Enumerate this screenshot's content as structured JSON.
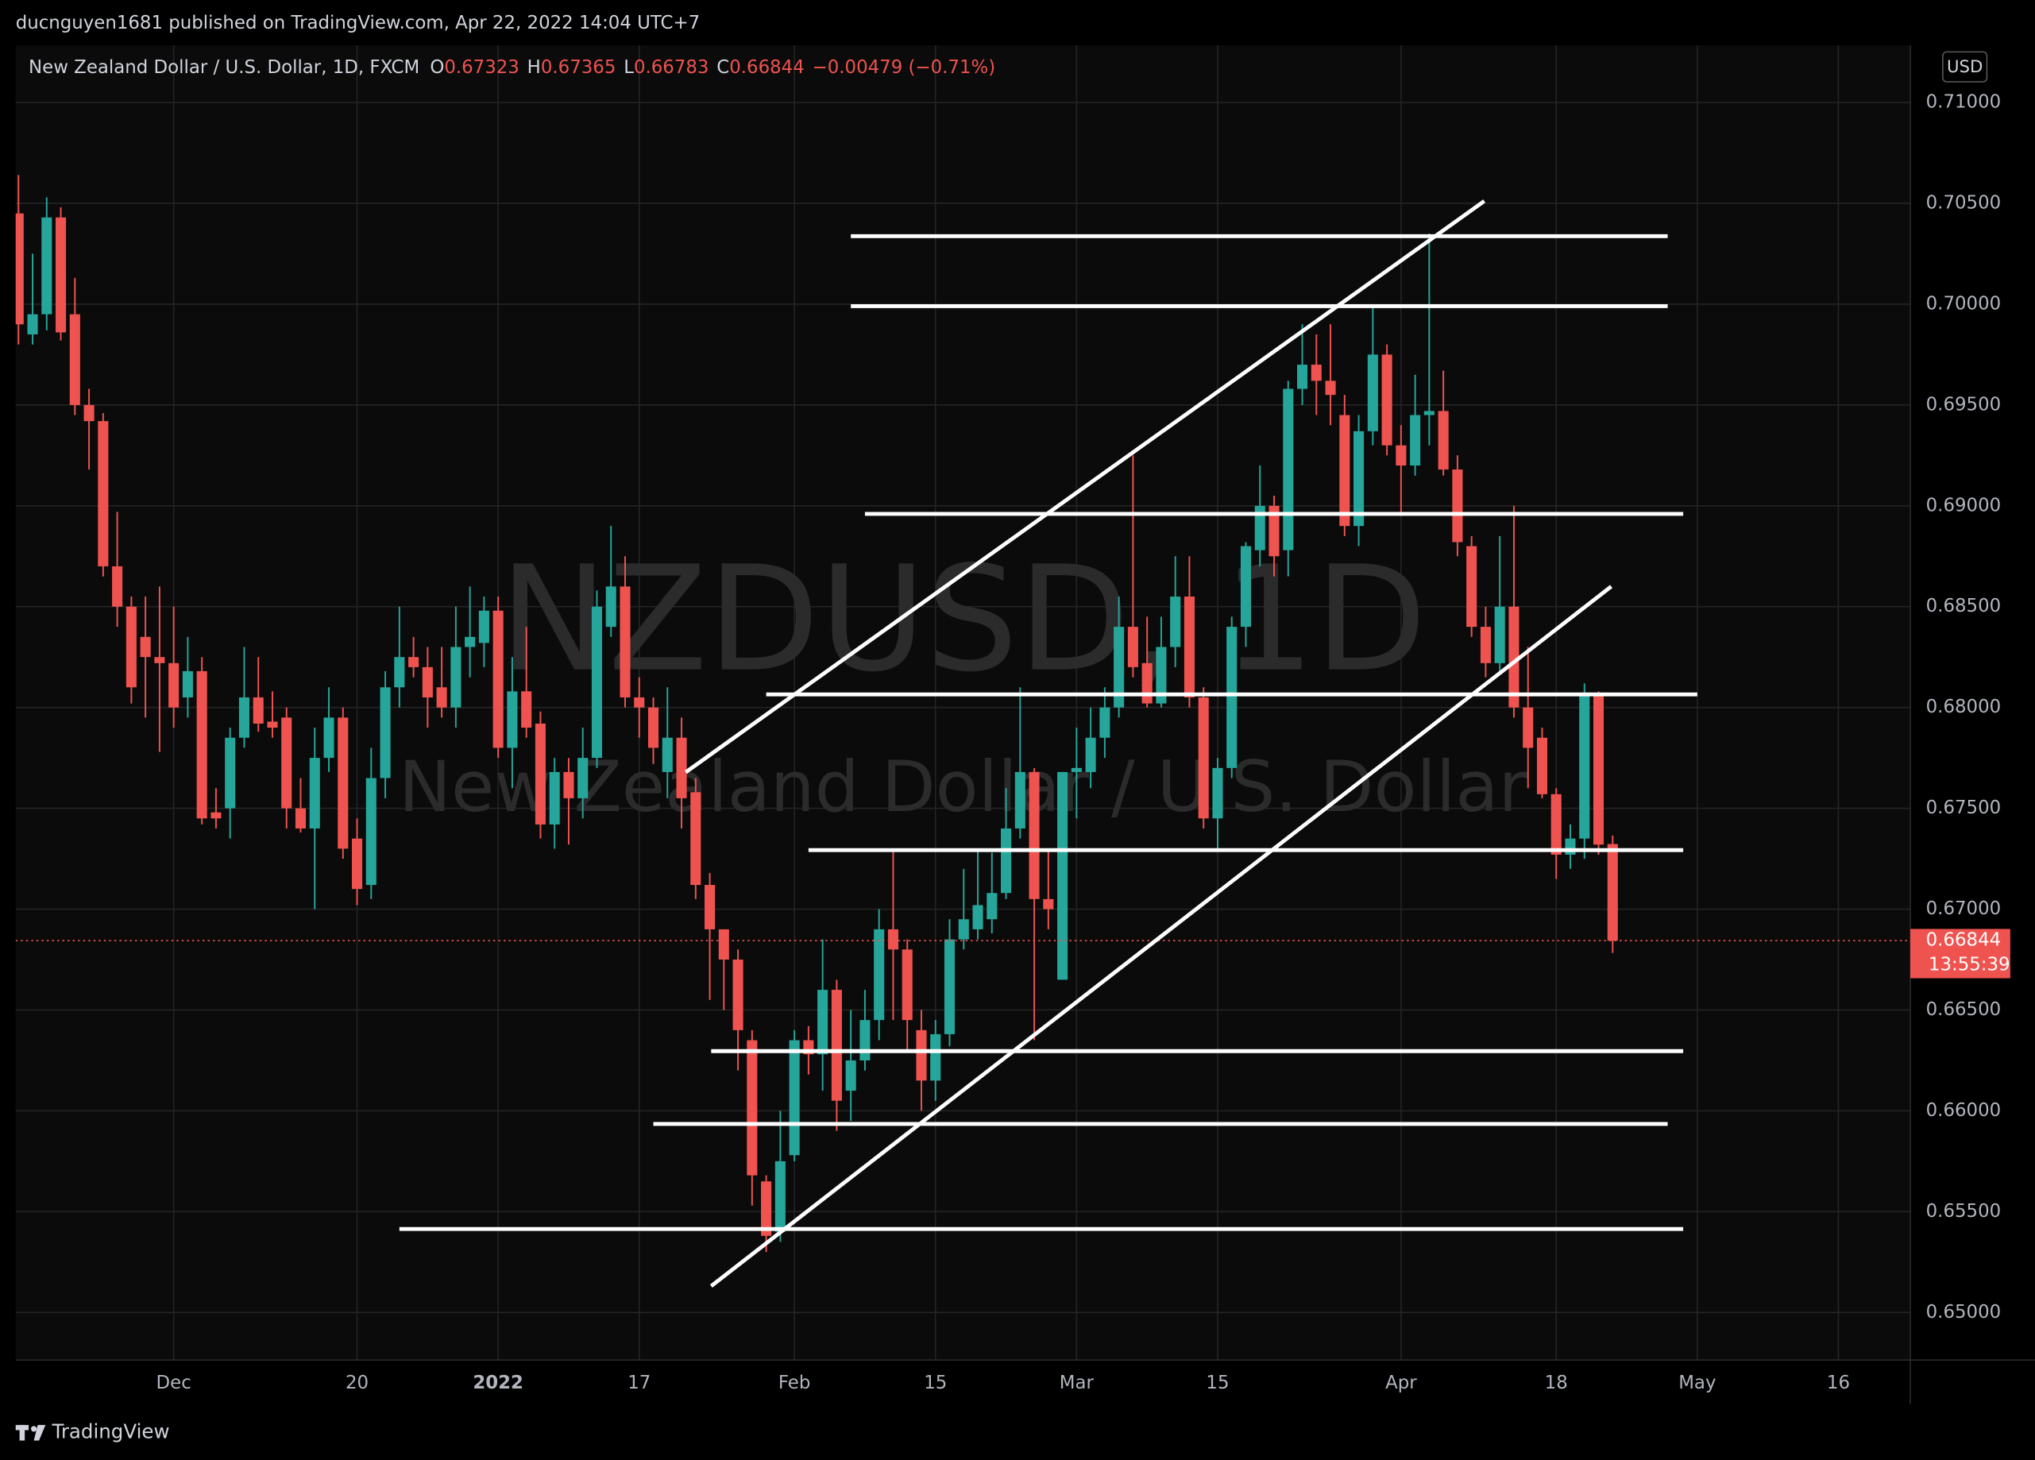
{
  "header": {
    "author": "ducnguyen1681 published on TradingView.com, Apr 22, 2022 14:04 UTC+7",
    "brand": "TradingView"
  },
  "chart_data": {
    "type": "candlestick",
    "symbol": "New Zealand Dollar / U.S. Dollar, 1D, FXCM",
    "ohlc": [
      {
        "label": "O",
        "value": 0.67323
      },
      {
        "label": "H",
        "value": 0.67365
      },
      {
        "label": "L",
        "value": 0.66783
      },
      {
        "label": "C",
        "value": 0.66844
      }
    ],
    "change": "−0.00479 (−0.71%)",
    "watermark": [
      "NZDUSD, 1D",
      "New Zealand Dollar / U.S. Dollar"
    ],
    "currency": "USD",
    "countdown": "13:55:39",
    "up_color": "#26a69a",
    "down_color": "#ef5350",
    "open": [
      0.7045,
      0.6985,
      0.6995,
      0.7043,
      0.6995,
      0.695,
      0.6942,
      0.687,
      0.685,
      0.6835,
      0.6825,
      0.6822,
      0.6805,
      0.6818,
      0.6748,
      0.675,
      0.6785,
      0.6805,
      0.6793,
      0.6795,
      0.675,
      0.674,
      0.6775,
      0.6795,
      0.6735,
      0.6712,
      0.6765,
      0.681,
      0.6825,
      0.682,
      0.681,
      0.68,
      0.683,
      0.6832,
      0.6848,
      0.678,
      0.6808,
      0.6792,
      0.6742,
      0.6768,
      0.6755,
      0.6775,
      0.684,
      0.686,
      0.6805,
      0.68,
      0.6768,
      0.6785,
      0.6758,
      0.6712,
      0.669,
      0.6675,
      0.6635,
      0.6565,
      0.654,
      0.6578,
      0.6635,
      0.6628,
      0.666,
      0.661,
      0.6625,
      0.6645,
      0.669,
      0.668,
      0.664,
      0.6615,
      0.6638,
      0.6685,
      0.669,
      0.6695,
      0.6708,
      0.674,
      0.6768,
      0.6705,
      0.6665,
      0.6768,
      0.6768,
      0.6785,
      0.68,
      0.684,
      0.6822,
      0.6802,
      0.683,
      0.6855,
      0.6805,
      0.6745,
      0.677,
      0.684,
      0.6878,
      0.69,
      0.6878,
      0.6958,
      0.697,
      0.6962,
      0.6945,
      0.689,
      0.6937,
      0.6975,
      0.693,
      0.692,
      0.6945,
      0.6947,
      0.6918,
      0.688,
      0.684,
      0.6822,
      0.685,
      0.68,
      0.6785,
      0.6757,
      0.6727,
      0.6735,
      0.6807,
      0.67323
    ],
    "high": [
      0.7064,
      0.7025,
      0.7053,
      0.7048,
      0.7013,
      0.6958,
      0.6946,
      0.6897,
      0.6855,
      0.6855,
      0.686,
      0.685,
      0.6835,
      0.6825,
      0.676,
      0.679,
      0.683,
      0.6825,
      0.6808,
      0.68,
      0.6765,
      0.679,
      0.681,
      0.68,
      0.6745,
      0.678,
      0.6818,
      0.685,
      0.6835,
      0.683,
      0.683,
      0.685,
      0.686,
      0.6855,
      0.6855,
      0.6825,
      0.684,
      0.6798,
      0.6775,
      0.6775,
      0.679,
      0.6858,
      0.689,
      0.6875,
      0.6815,
      0.6805,
      0.681,
      0.6795,
      0.6765,
      0.6718,
      0.669,
      0.668,
      0.664,
      0.6568,
      0.66,
      0.664,
      0.6642,
      0.6685,
      0.6665,
      0.665,
      0.666,
      0.67,
      0.673,
      0.6685,
      0.665,
      0.6645,
      0.6695,
      0.672,
      0.673,
      0.6728,
      0.676,
      0.681,
      0.677,
      0.673,
      0.6768,
      0.679,
      0.68,
      0.681,
      0.6855,
      0.6925,
      0.6845,
      0.6845,
      0.6875,
      0.6875,
      0.681,
      0.6775,
      0.6845,
      0.6882,
      0.692,
      0.6905,
      0.6962,
      0.699,
      0.6985,
      0.699,
      0.6955,
      0.6945,
      0.7,
      0.698,
      0.694,
      0.6965,
      0.7035,
      0.6967,
      0.6925,
      0.6885,
      0.685,
      0.6885,
      0.69,
      0.683,
      0.679,
      0.676,
      0.6742,
      0.6812,
      0.6808,
      0.67365
    ],
    "low": [
      0.698,
      0.698,
      0.6987,
      0.6982,
      0.6945,
      0.6918,
      0.6865,
      0.684,
      0.6802,
      0.6795,
      0.6778,
      0.679,
      0.6795,
      0.6742,
      0.674,
      0.6735,
      0.678,
      0.6788,
      0.6785,
      0.674,
      0.6738,
      0.67,
      0.6768,
      0.6725,
      0.6702,
      0.6705,
      0.6755,
      0.68,
      0.6815,
      0.679,
      0.6795,
      0.679,
      0.6815,
      0.682,
      0.6775,
      0.676,
      0.6785,
      0.6735,
      0.673,
      0.6732,
      0.6745,
      0.677,
      0.6835,
      0.68,
      0.6785,
      0.6772,
      0.6755,
      0.674,
      0.6705,
      0.6655,
      0.665,
      0.662,
      0.6553,
      0.653,
      0.6535,
      0.6575,
      0.6618,
      0.661,
      0.659,
      0.6595,
      0.662,
      0.6635,
      0.6645,
      0.663,
      0.66,
      0.6605,
      0.6632,
      0.668,
      0.6685,
      0.6688,
      0.6705,
      0.6735,
      0.6635,
      0.669,
      0.6665,
      0.6745,
      0.676,
      0.6775,
      0.6795,
      0.6815,
      0.68,
      0.68,
      0.682,
      0.68,
      0.674,
      0.673,
      0.6765,
      0.683,
      0.687,
      0.6865,
      0.6865,
      0.695,
      0.6945,
      0.694,
      0.6885,
      0.688,
      0.693,
      0.6925,
      0.6895,
      0.6915,
      0.693,
      0.6915,
      0.6875,
      0.6835,
      0.6815,
      0.6818,
      0.6795,
      0.676,
      0.6755,
      0.6715,
      0.672,
      0.6725,
      0.6727,
      0.66783
    ],
    "close": [
      0.699,
      0.6995,
      0.7043,
      0.6986,
      0.695,
      0.6942,
      0.687,
      0.685,
      0.681,
      0.6825,
      0.6822,
      0.68,
      0.6818,
      0.6745,
      0.6745,
      0.6785,
      0.6805,
      0.6792,
      0.679,
      0.675,
      0.674,
      0.6775,
      0.6795,
      0.673,
      0.671,
      0.6765,
      0.681,
      0.6825,
      0.682,
      0.6805,
      0.68,
      0.683,
      0.6835,
      0.6848,
      0.678,
      0.6808,
      0.679,
      0.6742,
      0.6768,
      0.6755,
      0.6775,
      0.685,
      0.686,
      0.6805,
      0.68,
      0.678,
      0.6785,
      0.6755,
      0.6712,
      0.669,
      0.6675,
      0.664,
      0.6568,
      0.6538,
      0.6575,
      0.6635,
      0.6628,
      0.666,
      0.6605,
      0.6625,
      0.6645,
      0.669,
      0.668,
      0.6645,
      0.6615,
      0.6638,
      0.6685,
      0.6695,
      0.6702,
      0.6708,
      0.674,
      0.6768,
      0.6705,
      0.67,
      0.6768,
      0.677,
      0.6785,
      0.68,
      0.684,
      0.682,
      0.6802,
      0.683,
      0.6855,
      0.6805,
      0.6745,
      0.677,
      0.684,
      0.688,
      0.69,
      0.6875,
      0.6958,
      0.697,
      0.6962,
      0.6955,
      0.689,
      0.6937,
      0.6975,
      0.693,
      0.692,
      0.6945,
      0.6947,
      0.6918,
      0.6882,
      0.684,
      0.6822,
      0.685,
      0.68,
      0.678,
      0.6757,
      0.6727,
      0.6735,
      0.6807,
      0.6732,
      0.66844
    ],
    "xlim": [
      -0.2,
      134.1
    ],
    "xticks": [
      {
        "value": 11,
        "label": "Dec"
      },
      {
        "value": 24,
        "label": "20"
      },
      {
        "value": 34,
        "label": "2022",
        "bold": true
      },
      {
        "value": 44,
        "label": "17"
      },
      {
        "value": 55,
        "label": "Feb"
      },
      {
        "value": 65,
        "label": "15"
      },
      {
        "value": 75,
        "label": "Mar"
      },
      {
        "value": 85,
        "label": "15"
      },
      {
        "value": 98,
        "label": "Apr"
      },
      {
        "value": 109,
        "label": "18"
      },
      {
        "value": 119,
        "label": "May"
      },
      {
        "value": 129,
        "label": "16"
      }
    ],
    "ylim": [
      0.64764,
      0.71283
    ],
    "yticks": [
      {
        "value": 0.65,
        "label": "0.65000"
      },
      {
        "value": 0.655,
        "label": "0.65500"
      },
      {
        "value": 0.66,
        "label": "0.66000"
      },
      {
        "value": 0.665,
        "label": "0.66500"
      },
      {
        "value": 0.67,
        "label": "0.67000"
      },
      {
        "value": 0.675,
        "label": "0.67500"
      },
      {
        "value": 0.68,
        "label": "0.68000"
      },
      {
        "value": 0.685,
        "label": "0.68500"
      },
      {
        "value": 0.69,
        "label": "0.69000"
      },
      {
        "value": 0.695,
        "label": "0.69500"
      },
      {
        "value": 0.7,
        "label": "0.70000"
      },
      {
        "value": 0.705,
        "label": "0.70500"
      },
      {
        "value": 0.71,
        "label": "0.71000"
      }
    ],
    "grid": true,
    "drawings": {
      "color": "#ffffff",
      "horizontal": [
        {
          "price": 0.70337,
          "from": 59.0,
          "to": 116.9
        },
        {
          "price": 0.6999,
          "from": 59.0,
          "to": 116.9
        },
        {
          "price": 0.6896,
          "from": 60.0,
          "to": 118.0
        },
        {
          "price": 0.68065,
          "from": 53.0,
          "to": 119.0
        },
        {
          "price": 0.67293,
          "from": 56.0,
          "to": 118.0
        },
        {
          "price": 0.66296,
          "from": 49.1,
          "to": 118.0
        },
        {
          "price": 0.65935,
          "from": 45.0,
          "to": 116.9
        },
        {
          "price": 0.65414,
          "from": 27.0,
          "to": 118.0
        }
      ],
      "trendlines": [
        {
          "x": [
            47.3,
            103.9
          ],
          "price": [
            0.67679,
            0.70511
          ]
        },
        {
          "x": [
            49.1,
            112.9
          ],
          "price": [
            0.65131,
            0.686
          ]
        }
      ]
    }
  }
}
